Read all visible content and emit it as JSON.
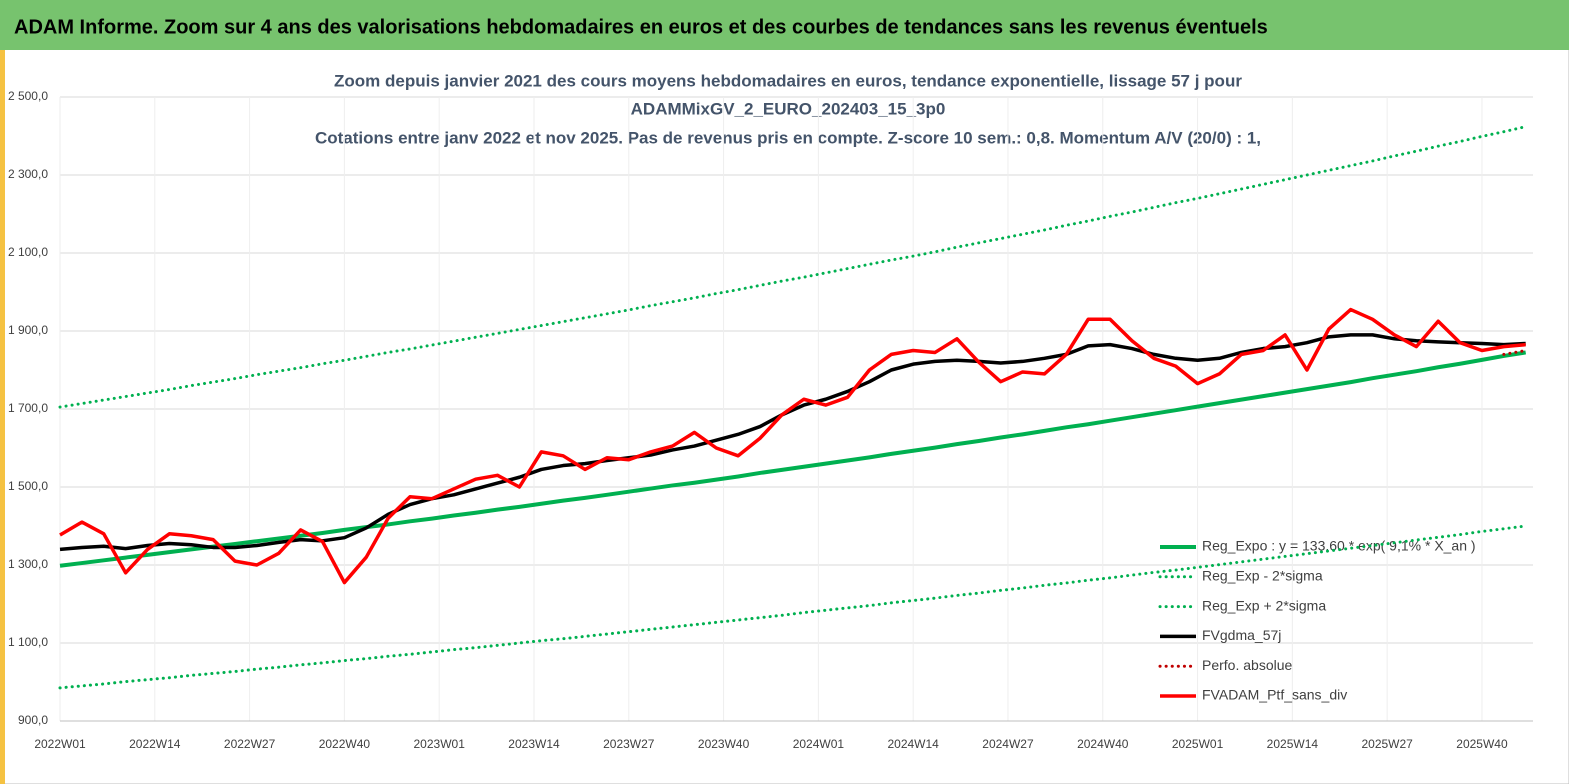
{
  "header": {
    "title": "ADAM Informe. Zoom sur 4 ans des valorisations hebdomadaires en euros et des courbes de tendances sans les revenus éventuels"
  },
  "chart_data": {
    "type": "line",
    "title": [
      "Zoom depuis janvier 2021 des cours moyens hebdomadaires  en euros, tendance exponentielle, lissage 57 j pour",
      "ADAMMixGV_2_EURO_202403_15_3p0",
      "Cotations entre janv 2022 et nov 2025. Pas de revenus pris en compte. Z-score 10 sem.: 0,8. Momentum A/V (20/0) : 1,"
    ],
    "x": [
      0,
      3,
      6,
      9,
      12,
      15,
      18,
      21,
      24,
      27,
      30,
      33,
      36,
      39,
      42,
      45,
      48,
      51,
      54,
      57,
      60,
      63,
      66,
      69,
      72,
      75,
      78,
      81,
      84,
      87,
      90,
      93,
      96,
      99,
      102,
      105,
      108,
      111,
      114,
      117,
      120,
      123,
      126,
      129,
      132,
      135,
      138,
      141,
      144,
      147,
      150,
      153,
      156,
      159,
      162,
      165,
      168,
      171,
      174,
      177,
      180,
      183,
      186,
      189,
      192,
      195,
      198,
      201
    ],
    "xlim": [
      0,
      202
    ],
    "xticks": [
      {
        "value": 0,
        "label": "2022W01"
      },
      {
        "value": 13,
        "label": "2022W14"
      },
      {
        "value": 26,
        "label": "2022W27"
      },
      {
        "value": 39,
        "label": "2022W40"
      },
      {
        "value": 52,
        "label": "2023W01"
      },
      {
        "value": 65,
        "label": "2023W14"
      },
      {
        "value": 78,
        "label": "2023W27"
      },
      {
        "value": 91,
        "label": "2023W40"
      },
      {
        "value": 104,
        "label": "2024W01"
      },
      {
        "value": 117,
        "label": "2024W14"
      },
      {
        "value": 130,
        "label": "2024W27"
      },
      {
        "value": 143,
        "label": "2024W40"
      },
      {
        "value": 156,
        "label": "2025W01"
      },
      {
        "value": 169,
        "label": "2025W14"
      },
      {
        "value": 182,
        "label": "2025W27"
      },
      {
        "value": 195,
        "label": "2025W40"
      }
    ],
    "ylim": [
      900,
      2500
    ],
    "yticks": [
      {
        "value": 900,
        "label": "900,0"
      },
      {
        "value": 1100,
        "label": "1 100,0"
      },
      {
        "value": 1300,
        "label": "1 300,0"
      },
      {
        "value": 1500,
        "label": "1 500,0"
      },
      {
        "value": 1700,
        "label": "1 700,0"
      },
      {
        "value": 1900,
        "label": "1 900,0"
      },
      {
        "value": 2100,
        "label": "2 100,0"
      },
      {
        "value": 2300,
        "label": "2 300,0"
      },
      {
        "value": 2500,
        "label": "2 500,0"
      }
    ],
    "grid": true,
    "legend": "right",
    "series": [
      {
        "name": "Reg_Expo : y = 133,60 * exp( 9,1% *  X_an )",
        "color": "#00b050",
        "style": "solid",
        "values": [
          1298,
          1305,
          1312,
          1319,
          1326,
          1333,
          1340,
          1347,
          1354,
          1361,
          1368,
          1375,
          1382,
          1390,
          1397,
          1404,
          1412,
          1419,
          1427,
          1434,
          1442,
          1449,
          1457,
          1465,
          1472,
          1480,
          1488,
          1496,
          1504,
          1511,
          1519,
          1527,
          1536,
          1544,
          1552,
          1560,
          1568,
          1576,
          1585,
          1593,
          1601,
          1610,
          1618,
          1627,
          1635,
          1644,
          1653,
          1661,
          1670,
          1679,
          1688,
          1697,
          1706,
          1715,
          1724,
          1733,
          1742,
          1751,
          1760,
          1769,
          1779,
          1788,
          1797,
          1807,
          1816,
          1826,
          1836,
          1845
        ]
      },
      {
        "name": "Reg_Exp - 2*sigma",
        "color": "#00b050",
        "style": "dotted",
        "values": [
          985,
          990,
          995,
          1001,
          1006,
          1011,
          1017,
          1022,
          1027,
          1033,
          1038,
          1044,
          1049,
          1055,
          1060,
          1066,
          1071,
          1077,
          1083,
          1088,
          1094,
          1100,
          1106,
          1111,
          1117,
          1123,
          1129,
          1135,
          1141,
          1147,
          1153,
          1159,
          1165,
          1171,
          1178,
          1184,
          1190,
          1196,
          1203,
          1209,
          1215,
          1222,
          1228,
          1235,
          1241,
          1248,
          1254,
          1261,
          1267,
          1274,
          1281,
          1287,
          1294,
          1301,
          1308,
          1315,
          1322,
          1329,
          1336,
          1343,
          1350,
          1357,
          1364,
          1371,
          1378,
          1386,
          1393,
          1400
        ]
      },
      {
        "name": "Reg_Exp + 2*sigma",
        "color": "#00b050",
        "style": "dotted",
        "values": [
          1705,
          1714,
          1723,
          1732,
          1741,
          1750,
          1760,
          1769,
          1778,
          1788,
          1797,
          1806,
          1816,
          1825,
          1835,
          1845,
          1854,
          1864,
          1874,
          1884,
          1894,
          1904,
          1914,
          1924,
          1934,
          1944,
          1954,
          1965,
          1975,
          1985,
          1996,
          2006,
          2017,
          2028,
          2038,
          2049,
          2060,
          2071,
          2082,
          2092,
          2103,
          2115,
          2126,
          2137,
          2148,
          2159,
          2171,
          2182,
          2194,
          2205,
          2217,
          2229,
          2240,
          2252,
          2264,
          2276,
          2288,
          2300,
          2312,
          2324,
          2336,
          2349,
          2361,
          2374,
          2386,
          2399,
          2411,
          2424
        ]
      },
      {
        "name": "FVgdma_57j",
        "color": "#000000",
        "style": "solid",
        "values": [
          1340,
          1345,
          1348,
          1342,
          1350,
          1355,
          1352,
          1345,
          1345,
          1350,
          1358,
          1365,
          1362,
          1370,
          1395,
          1430,
          1455,
          1470,
          1480,
          1495,
          1510,
          1525,
          1545,
          1555,
          1560,
          1568,
          1575,
          1582,
          1595,
          1605,
          1620,
          1635,
          1655,
          1685,
          1710,
          1725,
          1745,
          1770,
          1800,
          1815,
          1822,
          1825,
          1822,
          1818,
          1822,
          1830,
          1840,
          1862,
          1865,
          1855,
          1840,
          1830,
          1825,
          1830,
          1845,
          1855,
          1860,
          1870,
          1885,
          1890,
          1890,
          1880,
          1875,
          1872,
          1870,
          1868,
          1865,
          1868
        ]
      },
      {
        "name": "Perfo. absolue",
        "color": "#c00000",
        "style": "dotted",
        "values": [
          null,
          null,
          null,
          null,
          null,
          null,
          null,
          null,
          null,
          null,
          null,
          null,
          null,
          null,
          null,
          null,
          null,
          null,
          null,
          null,
          null,
          null,
          null,
          null,
          null,
          null,
          null,
          null,
          null,
          null,
          null,
          null,
          null,
          null,
          null,
          null,
          null,
          null,
          null,
          null,
          null,
          null,
          null,
          null,
          null,
          null,
          null,
          null,
          null,
          null,
          null,
          null,
          null,
          null,
          null,
          null,
          null,
          null,
          null,
          null,
          null,
          null,
          null,
          null,
          null,
          null,
          1840,
          1850
        ]
      },
      {
        "name": "FVADAM_Ptf_sans_div",
        "color": "#ff0000",
        "style": "solid",
        "values": [
          1377,
          1410,
          1380,
          1280,
          1340,
          1380,
          1375,
          1365,
          1310,
          1300,
          1330,
          1390,
          1360,
          1255,
          1320,
          1420,
          1475,
          1470,
          1495,
          1520,
          1530,
          1500,
          1590,
          1580,
          1545,
          1575,
          1570,
          1590,
          1605,
          1640,
          1600,
          1580,
          1625,
          1685,
          1725,
          1710,
          1730,
          1800,
          1840,
          1850,
          1845,
          1880,
          1820,
          1770,
          1795,
          1790,
          1840,
          1930,
          1930,
          1875,
          1830,
          1810,
          1765,
          1790,
          1840,
          1850,
          1890,
          1800,
          1905,
          1955,
          1930,
          1890,
          1860,
          1925,
          1870,
          1850,
          1860,
          1865
        ]
      }
    ]
  }
}
